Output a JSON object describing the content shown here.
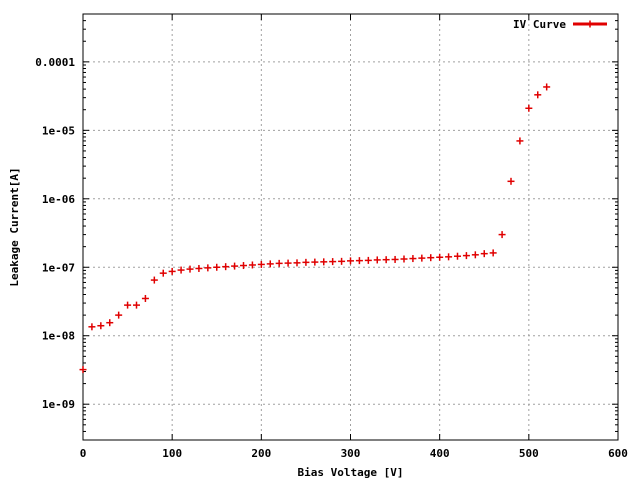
{
  "chart_data": {
    "type": "scatter",
    "title": "",
    "xlabel": "Bias Voltage [V]",
    "ylabel": "Leakage Current[A]",
    "xlim": [
      0,
      600
    ],
    "ylim": [
      3e-10,
      0.0005
    ],
    "y_scale": "log",
    "grid": true,
    "legend_position": "top-right",
    "x_ticks": [
      0,
      100,
      200,
      300,
      400,
      500,
      600
    ],
    "x_tick_labels": [
      "0",
      "100",
      "200",
      "300",
      "400",
      "500",
      "600"
    ],
    "y_ticks": [
      1e-09,
      1e-08,
      1e-07,
      1e-06,
      1e-05,
      0.0001
    ],
    "y_tick_labels": [
      "1e-09",
      "1e-08",
      "1e-07",
      "1e-06",
      "1e-05",
      "0.0001"
    ],
    "marker_color": "#e00000",
    "series": [
      {
        "name": "IV Curve",
        "color": "#e00000",
        "x": [
          0,
          10,
          20,
          30,
          40,
          50,
          60,
          70,
          80,
          90,
          100,
          110,
          120,
          130,
          140,
          150,
          160,
          170,
          180,
          190,
          200,
          210,
          220,
          230,
          240,
          250,
          260,
          270,
          280,
          290,
          300,
          310,
          320,
          330,
          340,
          350,
          360,
          370,
          380,
          390,
          400,
          410,
          420,
          430,
          440,
          450,
          460,
          470,
          480,
          490,
          500,
          510,
          520
        ],
        "y": [
          3.2e-09,
          1.35e-08,
          1.4e-08,
          1.55e-08,
          2e-08,
          2.8e-08,
          2.8e-08,
          3.5e-08,
          6.5e-08,
          8.2e-08,
          8.7e-08,
          9.1e-08,
          9.4e-08,
          9.6e-08,
          9.8e-08,
          1e-07,
          1.02e-07,
          1.04e-07,
          1.06e-07,
          1.08e-07,
          1.1e-07,
          1.12e-07,
          1.14e-07,
          1.15e-07,
          1.16e-07,
          1.18e-07,
          1.19e-07,
          1.2e-07,
          1.21e-07,
          1.22e-07,
          1.24e-07,
          1.25e-07,
          1.26e-07,
          1.28e-07,
          1.29e-07,
          1.3e-07,
          1.32e-07,
          1.34e-07,
          1.36e-07,
          1.38e-07,
          1.4e-07,
          1.42e-07,
          1.45e-07,
          1.48e-07,
          1.52e-07,
          1.58e-07,
          1.62e-07,
          3e-07,
          1.8e-06,
          7e-06,
          2.1e-05,
          3.3e-05,
          4.3e-05
        ]
      }
    ]
  }
}
